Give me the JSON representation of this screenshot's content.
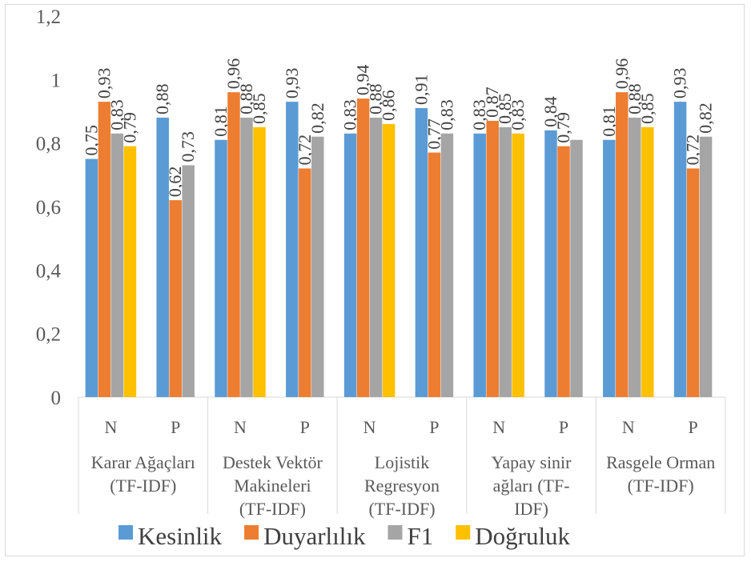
{
  "chart_data": {
    "type": "bar",
    "ylim": [
      0,
      1.2
    ],
    "yticks": [
      0,
      0.2,
      0.4,
      0.6,
      0.8,
      1,
      1.2
    ],
    "yticks_labels": [
      "0",
      "0,2",
      "0,4",
      "0,6",
      "0,8",
      "1",
      "1,2"
    ],
    "grid": false,
    "legend_position": "bottom",
    "groups": [
      {
        "label_lines": [
          "Karar Ağaçları",
          "(TF-IDF)"
        ],
        "subcategories": [
          "N",
          "P"
        ]
      },
      {
        "label_lines": [
          "Destek Vektör",
          "Makineleri",
          "(TF-IDF)"
        ],
        "subcategories": [
          "N",
          "P"
        ]
      },
      {
        "label_lines": [
          "Lojistik",
          "Regresyon",
          "(TF-IDF)"
        ],
        "subcategories": [
          "N",
          "P"
        ]
      },
      {
        "label_lines": [
          "Yapay sinir",
          "ağları (TF-",
          "IDF)"
        ],
        "subcategories": [
          "N",
          "P"
        ]
      },
      {
        "label_lines": [
          "Rasgele Orman",
          "(TF-IDF)"
        ],
        "subcategories": [
          "N",
          "P"
        ]
      }
    ],
    "series": [
      {
        "name": "Kesinlik",
        "color": "#5b9bd5",
        "values": [
          0.75,
          0.88,
          0.81,
          0.93,
          0.83,
          0.91,
          0.83,
          0.84,
          0.81,
          0.93
        ],
        "labels": [
          "0,75",
          "0,88",
          "0,81",
          "0,93",
          "0,83",
          "0,91",
          "0,83",
          "0,84",
          "0,81",
          "0,93"
        ]
      },
      {
        "name": "Duyarlılık",
        "color": "#ed7d31",
        "values": [
          0.93,
          0.62,
          0.96,
          0.72,
          0.94,
          0.77,
          0.87,
          0.79,
          0.96,
          0.72
        ],
        "labels": [
          "0,93",
          "0,62",
          "0,96",
          "0,72",
          "0,94",
          "0,77",
          "0,87",
          "0,79",
          "0,96",
          "0,72"
        ]
      },
      {
        "name": "F1",
        "color": "#a5a5a5",
        "values": [
          0.83,
          0.73,
          0.88,
          0.82,
          0.88,
          0.83,
          0.85,
          0.81,
          0.88,
          0.82
        ],
        "labels": [
          "0,83",
          "0,73",
          "0,88",
          "0,82",
          "0,88",
          "0,83",
          "0,85",
          "",
          "0,88",
          "0,82"
        ]
      },
      {
        "name": "Doğruluk",
        "color": "#ffc000",
        "values": [
          0.79,
          null,
          0.85,
          null,
          0.86,
          null,
          0.83,
          null,
          0.85,
          null
        ],
        "labels": [
          "0,79",
          "",
          "0,85",
          "",
          "0,86",
          "",
          "0,83",
          "",
          "0,85",
          ""
        ]
      }
    ]
  }
}
